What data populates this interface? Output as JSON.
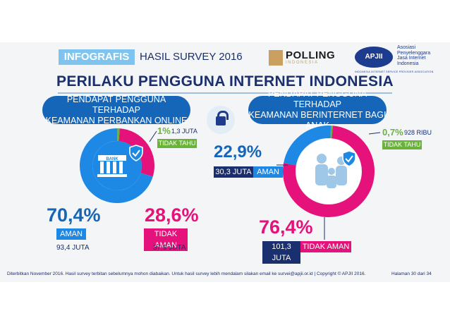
{
  "header": {
    "tag": "INFOGRAFIS",
    "subtitle": "HASIL SURVEY 2016",
    "polling_logo": "POLLING",
    "polling_logo_sub": "INDONESIA",
    "apjii_logo": "APJII",
    "apjii_desc": "Asosiasi Penyelenggara Jasa Internet Indonesia",
    "apjii_tag": "INDONESIA INTERNET SERVICE PROVIDER ASSOCIATION"
  },
  "title": "PERILAKU PENGGUNA INTERNET INDONESIA",
  "left_panel": {
    "banner_line1": "PENDAPAT PENGGUNA TERHADAP",
    "banner_line2": "KEAMANAN PERBANKAN ONLINE",
    "icon_label": "BANK"
  },
  "right_panel": {
    "banner_line1": "PENDAPAT PENGGUNA TERHADAP",
    "banner_line2": "KEAMANAN BERINTERNET BAGI ANAK"
  },
  "colors": {
    "aman": "#1e88e5",
    "tidak_aman": "#e4127a",
    "tidak_tahu": "#6ab33b",
    "navy": "#1a2f6e"
  },
  "icons": [
    "lock-icon",
    "bank-icon",
    "shield-check-icon",
    "family-icon"
  ],
  "chart_data": [
    {
      "type": "pie",
      "title": "PENDAPAT PENGGUNA TERHADAP KEAMANAN PERBANKAN ONLINE",
      "slices": [
        {
          "name": "AMAN",
          "value": 70.4,
          "label": "70,4%",
          "count": "93,4 JUTA",
          "color": "#1e88e5"
        },
        {
          "name": "TIDAK AMAN",
          "value": 28.6,
          "label": "28,6%",
          "count": "37,9 JUTA",
          "color": "#e4127a"
        },
        {
          "name": "TIDAK TAHU",
          "value": 1.0,
          "label": "1%",
          "count": "1,3 JUTA",
          "color": "#6ab33b"
        }
      ]
    },
    {
      "type": "pie",
      "title": "PENDAPAT PENGGUNA TERHADAP KEAMANAN BERINTERNET BAGI ANAK",
      "slices": [
        {
          "name": "AMAN",
          "value": 22.9,
          "label": "22,9%",
          "count": "30,3 JUTA",
          "color": "#1e88e5"
        },
        {
          "name": "TIDAK AMAN",
          "value": 76.4,
          "label": "76,4%",
          "count": "101,3 JUTA",
          "color": "#e4127a"
        },
        {
          "name": "TIDAK TAHU",
          "value": 0.7,
          "label": "0,7%",
          "count": "928 RIBU",
          "color": "#6ab33b"
        }
      ]
    }
  ],
  "footer": {
    "text": "Diterbitkan November 2016. Hasil survey terbitan sebelumnya mohon diabaikan. Untuk hasil survey lebih mendalam silakan email ke survei@apjii.or.id  |  Copyright © APJII 2016.",
    "page": "Halaman   30 dari 34"
  }
}
